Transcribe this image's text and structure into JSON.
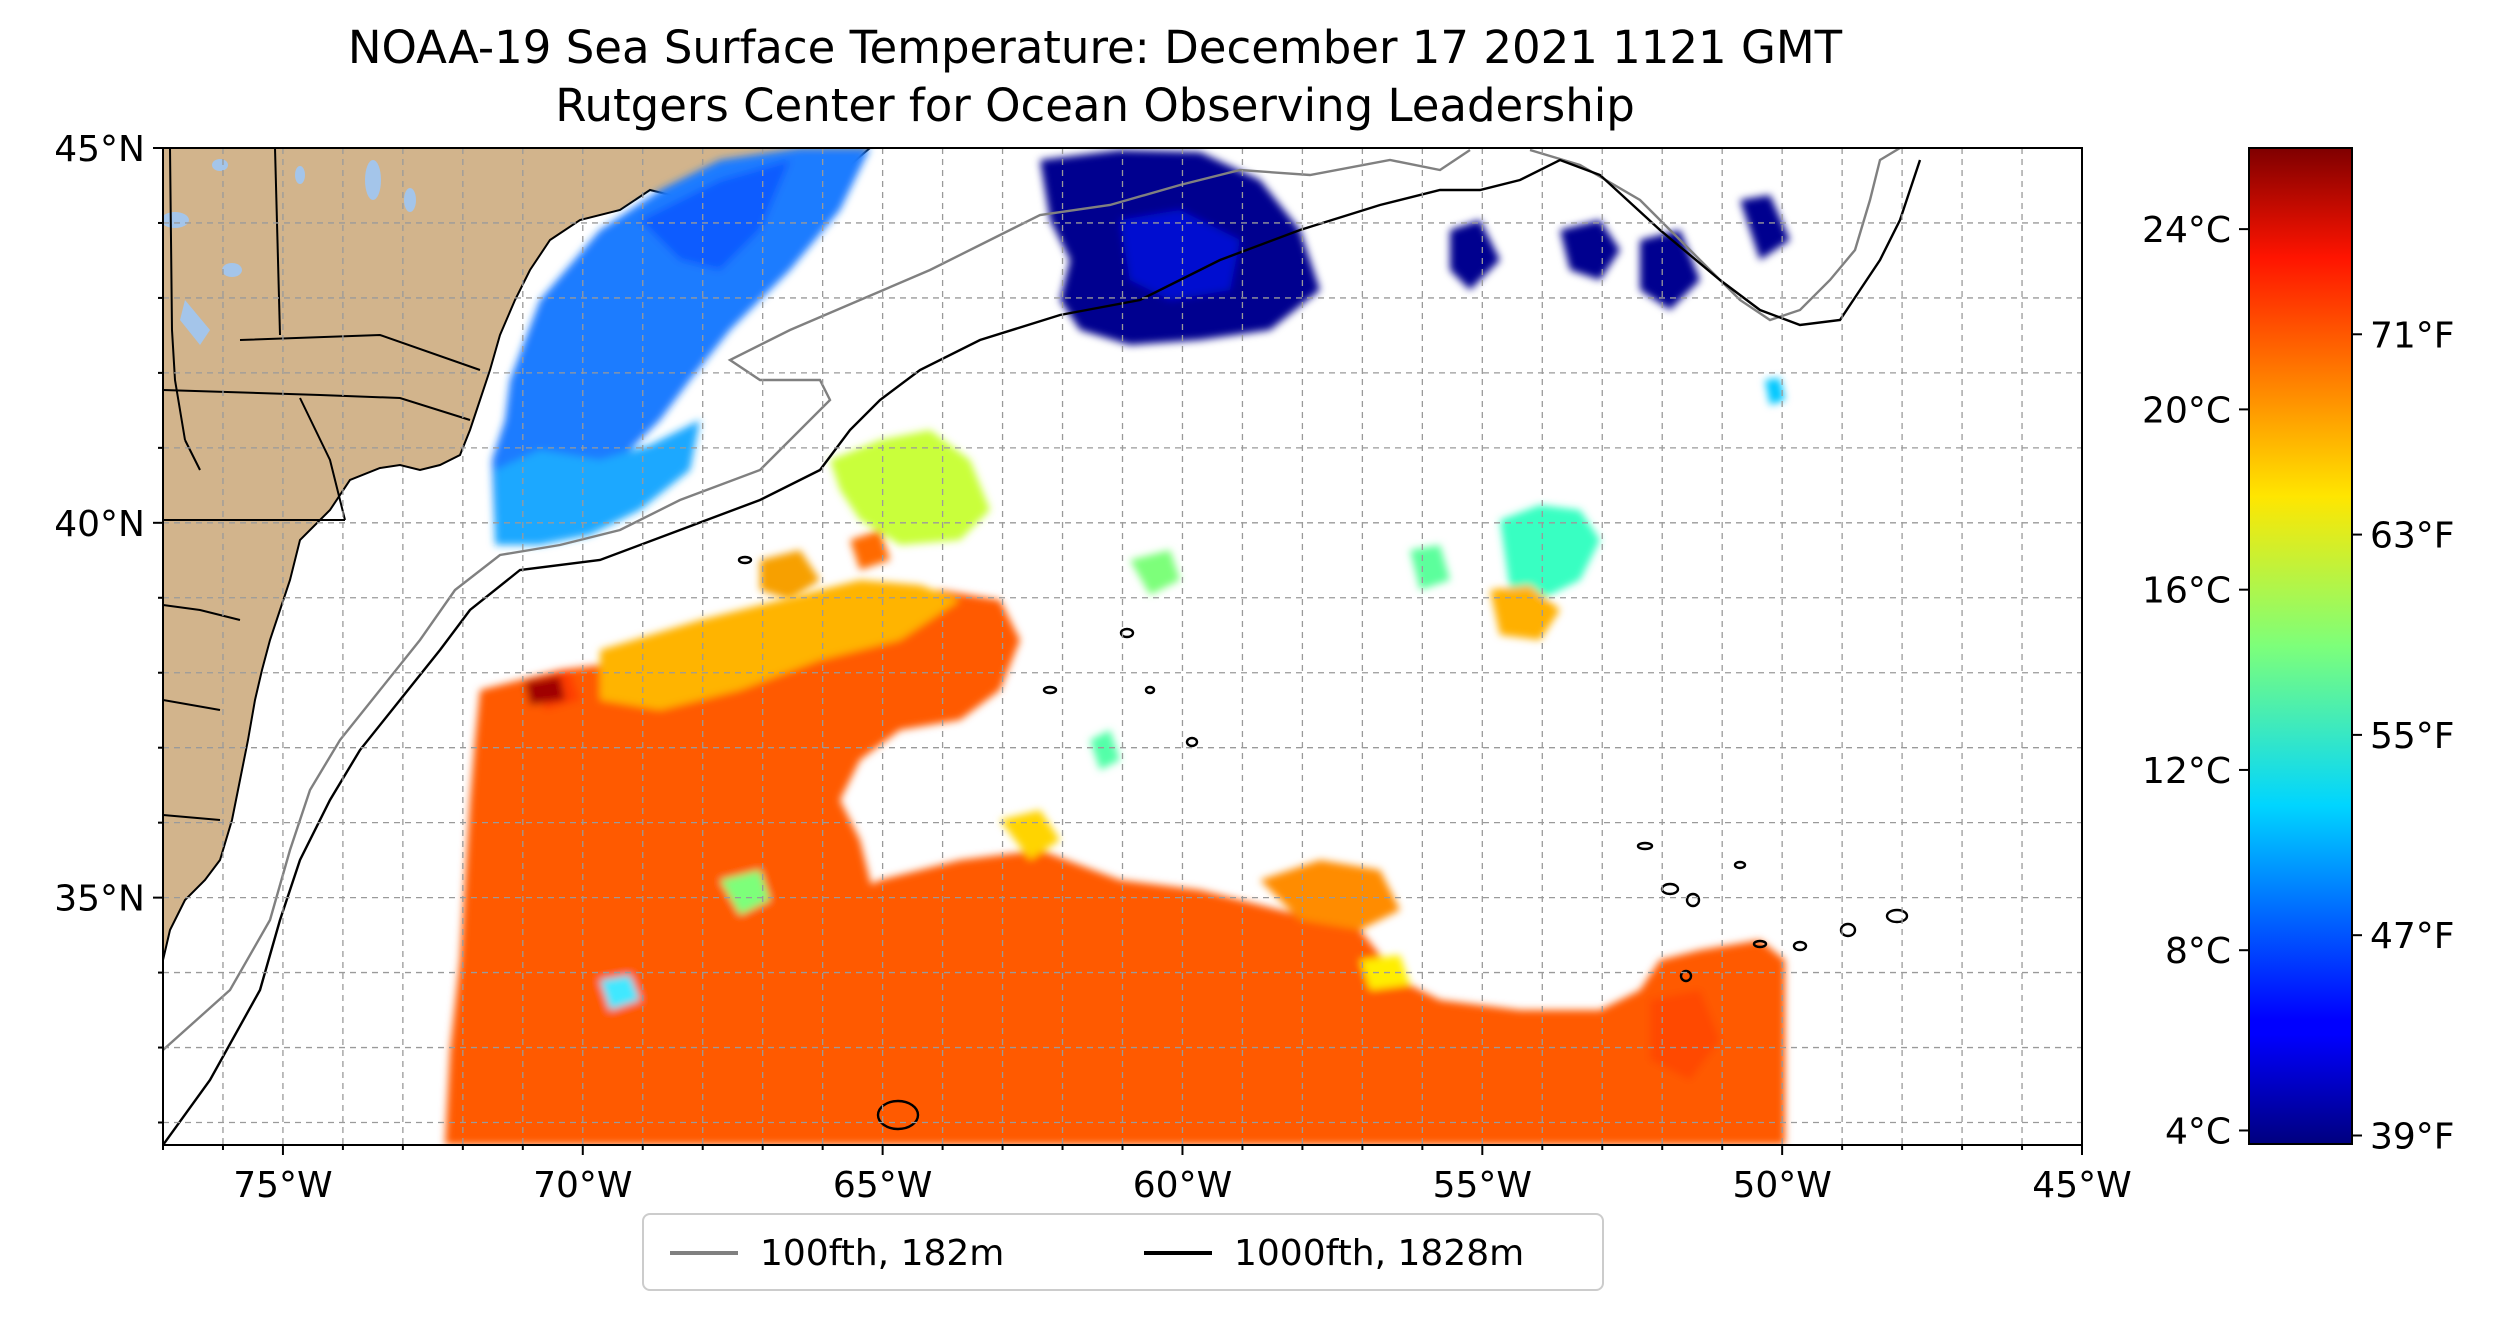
{
  "title": {
    "line1": "NOAA-19 Sea Surface Temperature: December 17 2021 1121 GMT",
    "line2": "Rutgers Center for Ocean Observing Leadership"
  },
  "map": {
    "lon_range": [
      -77,
      -45
    ],
    "lat_range": [
      31.7,
      45
    ],
    "x_ticks": [
      "75°W",
      "70°W",
      "65°W",
      "60°W",
      "55°W",
      "50°W",
      "45°W"
    ],
    "y_ticks": [
      "45°N",
      "40°N",
      "35°N"
    ],
    "gridlines": true,
    "land_color": "#d2b48c",
    "lake_color": "#a4c5ea"
  },
  "legend": {
    "placement": "bottom-center",
    "items": [
      {
        "label": "100fth, 182m",
        "color": "#808080"
      },
      {
        "label": "1000fth, 1828m",
        "color": "#000000"
      }
    ]
  },
  "colorbar": {
    "colormap": "jet",
    "celsius_ticks": [
      "24°C",
      "20°C",
      "16°C",
      "12°C",
      "8°C",
      "4°C"
    ],
    "fahrenheit_ticks": [
      "71°F",
      "63°F",
      "55°F",
      "47°F",
      "39°F"
    ]
  }
}
